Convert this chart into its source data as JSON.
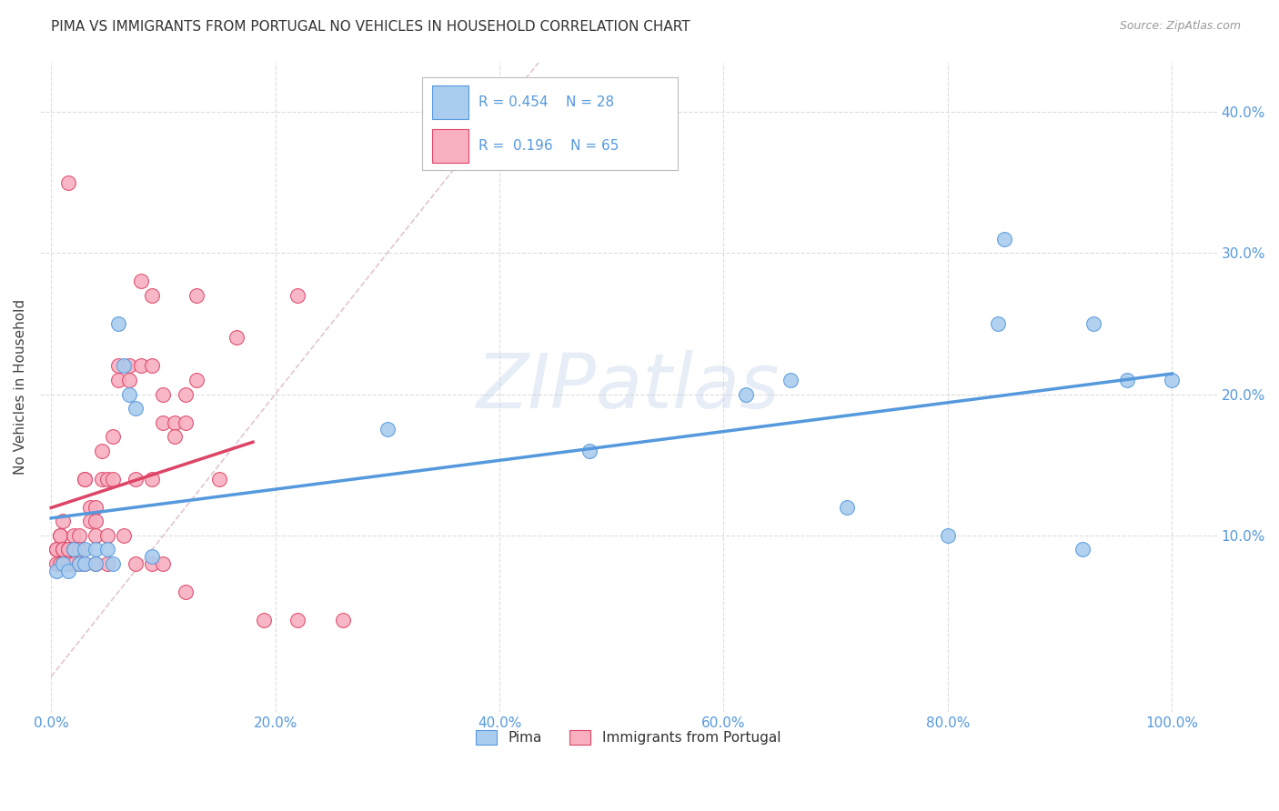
{
  "title": "PIMA VS IMMIGRANTS FROM PORTUGAL NO VEHICLES IN HOUSEHOLD CORRELATION CHART",
  "source": "Source: ZipAtlas.com",
  "ylabel": "No Vehicles in Household",
  "x_ticklabels": [
    "0.0%",
    "20.0%",
    "40.0%",
    "60.0%",
    "80.0%",
    "100.0%"
  ],
  "x_ticks": [
    0.0,
    0.2,
    0.4,
    0.6,
    0.8,
    1.0
  ],
  "y_ticklabels": [
    "10.0%",
    "20.0%",
    "30.0%",
    "40.0%"
  ],
  "y_ticks": [
    0.1,
    0.2,
    0.3,
    0.4
  ],
  "xlim": [
    -0.01,
    1.04
  ],
  "ylim": [
    -0.025,
    0.435
  ],
  "pima_color": "#aaccee",
  "portugal_color": "#f8b0c0",
  "trendline_pima_color": "#5599dd",
  "trendline_portugal_color": "#dd4466",
  "diagonal_color": "#ddbbcc",
  "watermark_text": "ZIPatlas",
  "legend_r_pima": "0.454",
  "legend_n_pima": "28",
  "legend_r_portugal": "0.196",
  "legend_n_portugal": "65",
  "pima_x": [
    0.005,
    0.01,
    0.015,
    0.02,
    0.025,
    0.03,
    0.03,
    0.04,
    0.04,
    0.05,
    0.055,
    0.06,
    0.065,
    0.07,
    0.075,
    0.09,
    0.3,
    0.48,
    0.62,
    0.66,
    0.71,
    0.8,
    0.845,
    0.85,
    0.92,
    0.93,
    0.96,
    1.0
  ],
  "pima_y": [
    0.075,
    0.08,
    0.075,
    0.09,
    0.08,
    0.09,
    0.08,
    0.09,
    0.08,
    0.09,
    0.08,
    0.25,
    0.22,
    0.2,
    0.19,
    0.085,
    0.175,
    0.16,
    0.2,
    0.21,
    0.12,
    0.1,
    0.25,
    0.31,
    0.09,
    0.25,
    0.21,
    0.21
  ],
  "portugal_x": [
    0.005,
    0.005,
    0.005,
    0.008,
    0.008,
    0.008,
    0.01,
    0.01,
    0.01,
    0.01,
    0.015,
    0.015,
    0.015,
    0.015,
    0.02,
    0.02,
    0.02,
    0.025,
    0.025,
    0.025,
    0.03,
    0.03,
    0.03,
    0.035,
    0.035,
    0.04,
    0.04,
    0.04,
    0.04,
    0.045,
    0.045,
    0.05,
    0.05,
    0.05,
    0.055,
    0.055,
    0.06,
    0.06,
    0.065,
    0.07,
    0.07,
    0.075,
    0.075,
    0.08,
    0.08,
    0.09,
    0.09,
    0.09,
    0.09,
    0.1,
    0.1,
    0.1,
    0.11,
    0.11,
    0.12,
    0.12,
    0.12,
    0.13,
    0.13,
    0.15,
    0.165,
    0.19,
    0.22,
    0.22,
    0.26
  ],
  "portugal_y": [
    0.09,
    0.09,
    0.08,
    0.1,
    0.1,
    0.08,
    0.11,
    0.09,
    0.09,
    0.08,
    0.35,
    0.09,
    0.09,
    0.08,
    0.1,
    0.09,
    0.08,
    0.1,
    0.09,
    0.08,
    0.14,
    0.14,
    0.08,
    0.12,
    0.11,
    0.12,
    0.11,
    0.08,
    0.1,
    0.16,
    0.14,
    0.14,
    0.1,
    0.08,
    0.17,
    0.14,
    0.22,
    0.21,
    0.1,
    0.22,
    0.21,
    0.14,
    0.08,
    0.28,
    0.22,
    0.27,
    0.22,
    0.14,
    0.08,
    0.2,
    0.18,
    0.08,
    0.18,
    0.17,
    0.2,
    0.18,
    0.06,
    0.27,
    0.21,
    0.14,
    0.24,
    0.04,
    0.04,
    0.27,
    0.04
  ],
  "background_color": "#ffffff",
  "grid_color": "#dddddd",
  "title_fontsize": 11,
  "tick_color": "#5599dd",
  "ylabel_color": "#444444"
}
